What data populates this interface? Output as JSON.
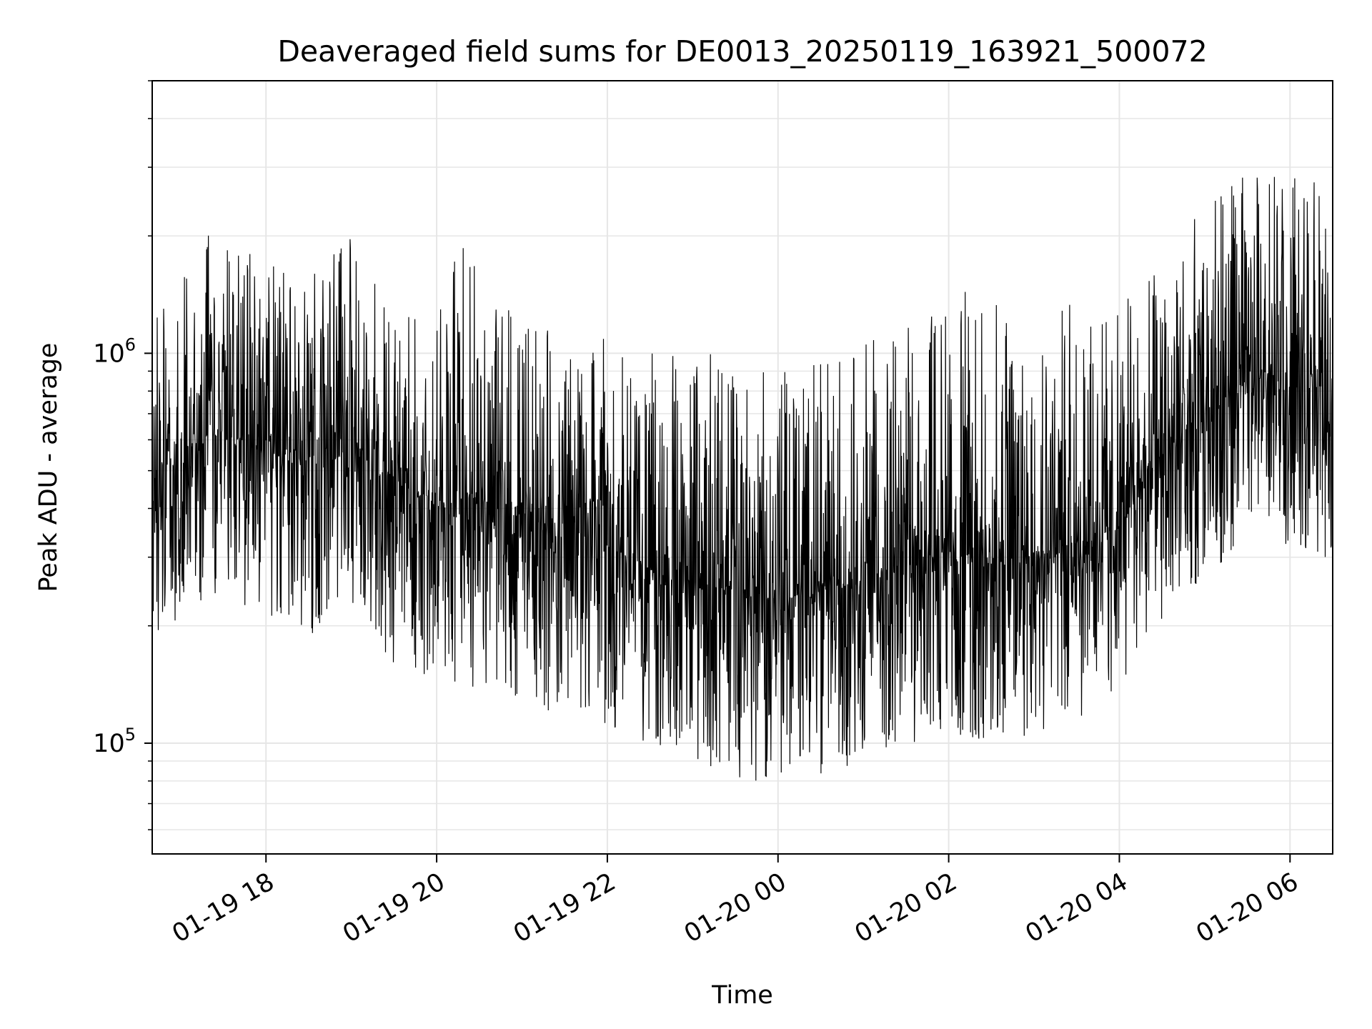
{
  "chart_data": {
    "type": "line",
    "title": "Deaveraged field sums for DE0013_20250119_163921_500072",
    "xlabel": "Time",
    "ylabel": "Peak ADU - average",
    "yscale": "log",
    "ylim": [
      52000,
      5000000
    ],
    "xlim": [
      "2025-01-19 16:40",
      "2025-01-20 06:30"
    ],
    "x_ticks": [
      "01-19 18",
      "01-19 20",
      "01-19 22",
      "01-20 00",
      "01-20 02",
      "01-20 04",
      "01-20 06"
    ],
    "y_ticks": [
      {
        "base": "10",
        "exp": "5",
        "value": 100000
      },
      {
        "base": "10",
        "exp": "6",
        "value": 1000000
      }
    ],
    "grid": true,
    "line_color": "#000000",
    "series": [
      {
        "x": [
          "2025-01-19 16:40",
          "2025-01-19 17:00",
          "2025-01-19 17:20",
          "2025-01-19 17:40",
          "2025-01-19 18:00",
          "2025-01-19 18:20",
          "2025-01-19 18:40",
          "2025-01-19 19:00",
          "2025-01-19 19:20",
          "2025-01-19 19:40",
          "2025-01-19 20:00",
          "2025-01-19 20:20",
          "2025-01-19 20:40",
          "2025-01-19 21:00",
          "2025-01-19 21:20",
          "2025-01-19 21:40",
          "2025-01-19 22:00",
          "2025-01-19 22:20",
          "2025-01-19 22:40",
          "2025-01-19 23:00",
          "2025-01-19 23:20",
          "2025-01-19 23:40",
          "2025-01-20 00:00",
          "2025-01-20 00:20",
          "2025-01-20 00:40",
          "2025-01-20 01:00",
          "2025-01-20 01:20",
          "2025-01-20 01:40",
          "2025-01-20 02:00",
          "2025-01-20 02:20",
          "2025-01-20 02:40",
          "2025-01-20 03:00",
          "2025-01-20 03:20",
          "2025-01-20 03:40",
          "2025-01-20 04:00",
          "2025-01-20 04:20",
          "2025-01-20 04:40",
          "2025-01-20 05:00",
          "2025-01-20 05:20",
          "2025-01-20 05:40",
          "2025-01-20 06:00",
          "2025-01-20 06:20",
          "2025-01-20 06:30"
        ],
        "center": [
          500000,
          550000,
          620000,
          600000,
          560000,
          540000,
          520000,
          560000,
          500000,
          450000,
          420000,
          430000,
          400000,
          380000,
          360000,
          340000,
          320000,
          290000,
          270000,
          260000,
          250000,
          240000,
          230000,
          240000,
          250000,
          260000,
          280000,
          300000,
          310000,
          300000,
          290000,
          310000,
          320000,
          330000,
          360000,
          500000,
          600000,
          650000,
          800000,
          900000,
          850000,
          800000,
          600000
        ],
        "low": [
          180000,
          200000,
          230000,
          220000,
          200000,
          190000,
          180000,
          200000,
          170000,
          150000,
          140000,
          140000,
          130000,
          125000,
          120000,
          115000,
          110000,
          100000,
          95000,
          90000,
          85000,
          80000,
          80000,
          82000,
          85000,
          90000,
          95000,
          100000,
          105000,
          100000,
          98000,
          105000,
          110000,
          115000,
          130000,
          190000,
          230000,
          250000,
          300000,
          350000,
          320000,
          300000,
          220000
        ],
        "high": [
          1200000,
          1500000,
          2200000,
          1900000,
          1700000,
          1600000,
          1700000,
          2000000,
          1500000,
          1300000,
          1300000,
          2400000,
          1500000,
          1300000,
          1200000,
          1100000,
          1100000,
          1000000,
          1000000,
          1000000,
          1000000,
          900000,
          900000,
          950000,
          1000000,
          1100000,
          1100000,
          1300000,
          1400000,
          1500000,
          1300000,
          1500000,
          1400000,
          1300000,
          1300000,
          1700000,
          2100000,
          2400000,
          2800000,
          3000000,
          3100000,
          2700000,
          1800000
        ]
      }
    ]
  }
}
